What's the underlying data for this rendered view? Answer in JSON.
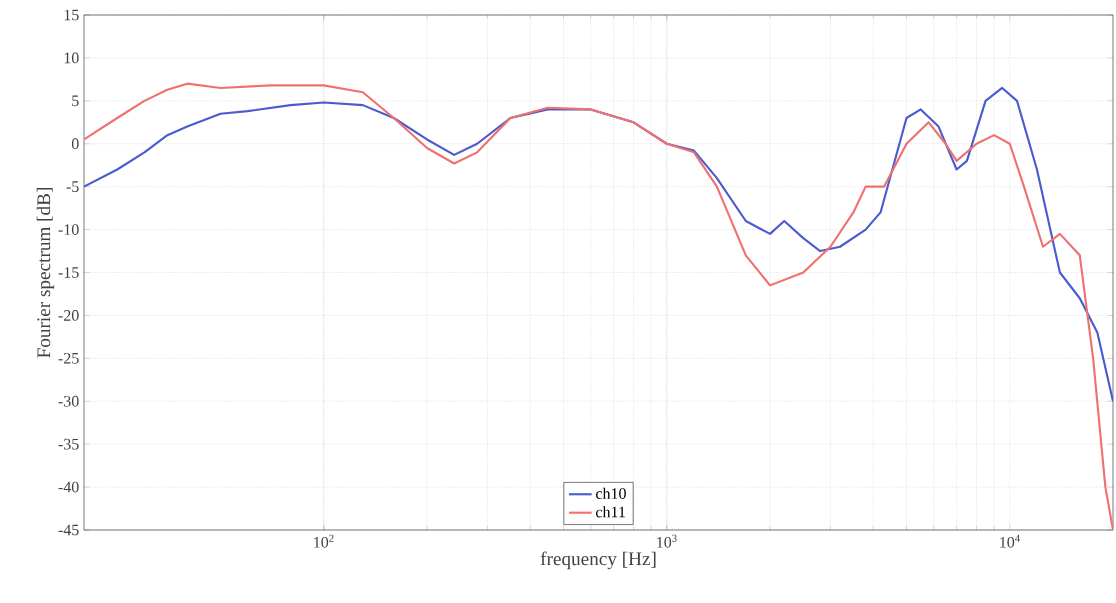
{
  "chart_data": {
    "type": "line",
    "xlabel": "frequency [Hz]",
    "ylabel": "Fourier spectrum [dB]",
    "log": "x",
    "grid": true,
    "legend": "bottom",
    "line_style": "solid",
    "marker": "none",
    "xlim": [
      20,
      20000
    ],
    "ylim": [
      -45,
      15
    ],
    "xticks": [
      {
        "value": 100,
        "label": "10$^{2}$"
      },
      {
        "value": 1000,
        "label": "10$^{3}$"
      },
      {
        "value": 10000,
        "label": "10$^{4}$"
      }
    ],
    "yticks": [
      -45,
      -40,
      -35,
      -30,
      -25,
      -20,
      -15,
      -10,
      -5,
      0,
      5,
      10,
      15
    ],
    "series": [
      {
        "name": "ch10",
        "color": "#4a5bd0",
        "x": [
          20,
          25,
          30,
          35,
          40,
          50,
          60,
          80,
          100,
          130,
          160,
          200,
          240,
          280,
          350,
          450,
          600,
          800,
          1000,
          1200,
          1400,
          1700,
          2000,
          2200,
          2500,
          2800,
          3200,
          3800,
          4200,
          5000,
          5500,
          6200,
          7000,
          7500,
          8500,
          9500,
          10500,
          12000,
          14000,
          16000,
          18000,
          20000
        ],
        "values": [
          -5,
          -3,
          -1,
          1,
          2,
          3.5,
          3.8,
          4.5,
          4.8,
          4.5,
          3,
          0.5,
          -1.3,
          0,
          3,
          4,
          4,
          2.5,
          0,
          -0.8,
          -4,
          -9,
          -10.5,
          -9,
          -11,
          -12.5,
          -12,
          -10,
          -8,
          3,
          4,
          2,
          -3,
          -2,
          5,
          6.5,
          5,
          -3,
          -15,
          -18,
          -22,
          -30
        ]
      },
      {
        "name": "ch11",
        "color": "#f07070",
        "x": [
          20,
          25,
          30,
          35,
          40,
          50,
          70,
          100,
          130,
          160,
          200,
          240,
          280,
          350,
          450,
          600,
          800,
          1000,
          1200,
          1400,
          1700,
          2000,
          2500,
          3000,
          3500,
          3800,
          4300,
          5000,
          5800,
          6500,
          7000,
          8000,
          9000,
          10000,
          11000,
          12500,
          14000,
          16000,
          17500,
          19000,
          20000
        ],
        "values": [
          0.5,
          3,
          5,
          6.3,
          7,
          6.5,
          6.8,
          6.8,
          6,
          3,
          -0.5,
          -2.3,
          -1,
          3,
          4.2,
          4,
          2.5,
          0,
          -1,
          -5,
          -13,
          -16.5,
          -15,
          -12,
          -8,
          -5,
          -5,
          0,
          2.5,
          0,
          -2,
          0,
          1,
          0,
          -5,
          -12,
          -10.5,
          -13,
          -25,
          -40,
          -45
        ]
      }
    ]
  }
}
